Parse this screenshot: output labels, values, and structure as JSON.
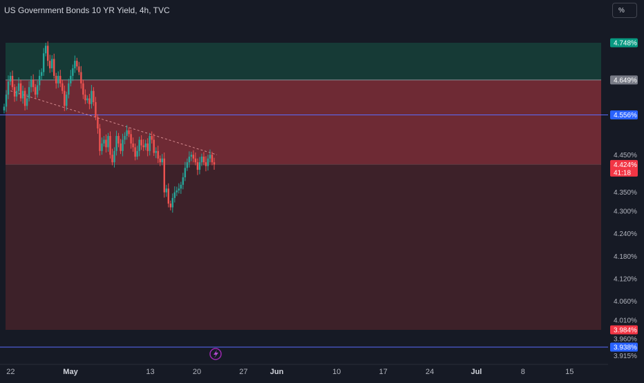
{
  "header": {
    "title": "US Government Bonds 10 YR Yield, 4h, TVC",
    "unit_button": "%"
  },
  "colors": {
    "background": "#161a25",
    "axis_text": "#b2b5be",
    "up": "#26a69a",
    "down": "#ef5350",
    "take_profit_zone": "#163a36",
    "risk_zone": "#6e2a34",
    "lower_zone": "#3d2129",
    "blue_line": "#5b6cff",
    "last_price": "#f23645",
    "tp_price": "#089981",
    "entry_price": "#787b86",
    "blue_price": "#2962ff"
  },
  "chart_data": {
    "type": "candlestick",
    "ylim": [
      3.905,
      4.815
    ],
    "y_ticks": [
      "4.450%",
      "4.350%",
      "4.300%",
      "4.240%",
      "4.180%",
      "4.120%",
      "4.060%",
      "4.010%",
      "3.960%",
      "3.915%"
    ],
    "y_tick_values": [
      4.45,
      4.35,
      4.3,
      4.24,
      4.18,
      4.12,
      4.06,
      4.01,
      3.96,
      3.915
    ],
    "x_ticks": [
      "22",
      "May",
      "13",
      "20",
      "27",
      "Jun",
      "10",
      "17",
      "24",
      "Jul",
      "8",
      "15"
    ],
    "x_tick_days": [
      -9,
      0,
      12,
      19,
      26,
      31,
      40,
      47,
      54,
      61,
      68,
      75
    ],
    "zones": [
      {
        "name": "take-profit-zone",
        "top": 4.748,
        "bottom": 4.649
      },
      {
        "name": "risk-zone",
        "top": 4.649,
        "bottom": 4.424
      },
      {
        "name": "lower-zone",
        "top": 4.424,
        "bottom": 3.984
      }
    ],
    "horizontal_lines": [
      {
        "name": "blue-line-upper",
        "value": 4.556
      },
      {
        "name": "blue-line-lower",
        "value": 3.938
      }
    ],
    "trendline": {
      "start": [
        -9,
        4.62
      ],
      "end": [
        22,
        4.45
      ]
    },
    "price_labels": [
      {
        "name": "tp-price-label",
        "text": "4.748%",
        "value": 4.748,
        "color": "#089981"
      },
      {
        "name": "entry-price-label",
        "text": "4.649%",
        "value": 4.649,
        "color": "#787b86"
      },
      {
        "name": "blue-price-label",
        "text": "4.556%",
        "value": 4.556,
        "color": "#2962ff"
      },
      {
        "name": "last-price-label",
        "text": "4.424%",
        "value": 4.424,
        "color": "#f23645",
        "sub": "41:18"
      },
      {
        "name": "stop-price-label",
        "text": "3.984%",
        "value": 3.984,
        "color": "#f23645"
      },
      {
        "name": "lower-blue-price-label",
        "text": "3.938%",
        "value": 3.938,
        "color": "#2962ff"
      }
    ],
    "candle_closes": [
      4.578,
      4.61,
      4.645,
      4.66,
      4.63,
      4.605,
      4.62,
      4.64,
      4.6,
      4.62,
      4.58,
      4.6,
      4.63,
      4.65,
      4.63,
      4.61,
      4.635,
      4.66,
      4.67,
      4.72,
      4.74,
      4.7,
      4.68,
      4.705,
      4.66,
      4.64,
      4.66,
      4.64,
      4.62,
      4.58,
      4.61,
      4.64,
      4.66,
      4.68,
      4.7,
      4.685,
      4.67,
      4.64,
      4.61,
      4.595,
      4.6,
      4.585,
      4.62,
      4.59,
      4.55,
      4.52,
      4.46,
      4.48,
      4.49,
      4.47,
      4.5,
      4.45,
      4.43,
      4.46,
      4.5,
      4.48,
      4.46,
      4.49,
      4.5,
      4.515,
      4.505,
      4.48,
      4.47,
      4.445,
      4.46,
      4.49,
      4.475,
      4.47,
      4.48,
      4.46,
      4.5,
      4.49,
      4.455,
      4.46,
      4.44,
      4.43,
      4.44,
      4.35,
      4.36,
      4.32,
      4.31,
      4.335,
      4.35,
      4.355,
      4.36,
      4.37,
      4.39,
      4.415,
      4.43,
      4.445,
      4.45,
      4.44,
      4.43,
      4.41,
      4.43,
      4.445,
      4.43,
      4.42,
      4.44,
      4.45,
      4.43,
      4.424
    ]
  }
}
